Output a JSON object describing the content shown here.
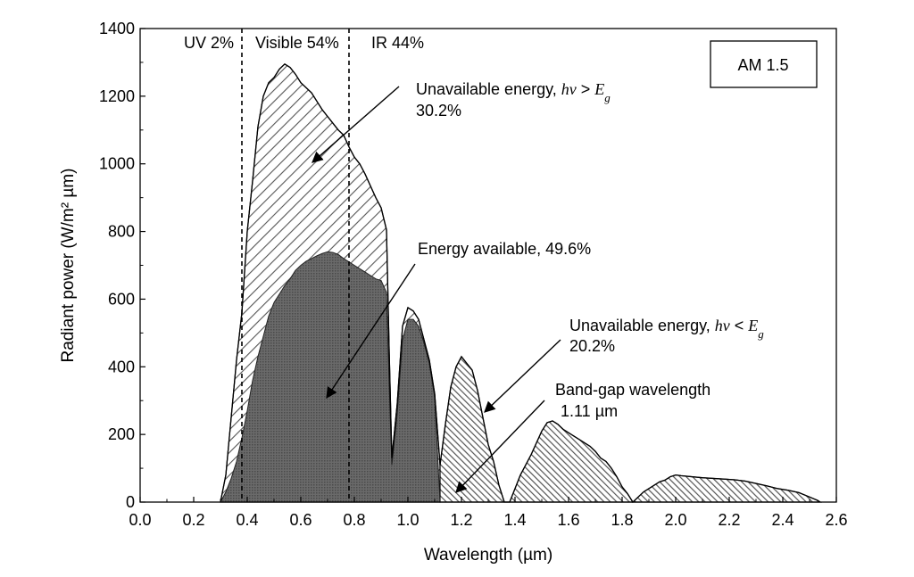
{
  "chart_data": {
    "type": "area",
    "title": "",
    "xlabel": "Wavelength (µm)",
    "ylabel": "Radiant power (W/m² µm)",
    "xlim": [
      0.0,
      2.6
    ],
    "ylim": [
      0,
      1400
    ],
    "xticks": [
      "0.0",
      "0.2",
      "0.4",
      "0.6",
      "0.8",
      "1.0",
      "1.2",
      "1.4",
      "1.6",
      "1.8",
      "2.0",
      "2.2",
      "2.4",
      "2.6"
    ],
    "yticks": [
      "0",
      "200",
      "400",
      "600",
      "800",
      "1000",
      "1200",
      "1400"
    ],
    "grid": false,
    "legend_box": "AM 1.5",
    "region_labels": {
      "uv": "UV 2%",
      "visible": "Visible 54%",
      "ir": "IR 44%"
    },
    "divider_lines_x": [
      0.38,
      0.78
    ],
    "annotations": {
      "unavailable_high": {
        "line1": "Unavailable energy, ",
        "hv": "hν",
        "op": " > ",
        "eg": "E",
        "sub": "g",
        "line2": "30.2%"
      },
      "available": {
        "line1": "Energy available, 49.6%"
      },
      "unavailable_low": {
        "line1": "Unavailable energy,  ",
        "hv": "hν",
        "op": " < ",
        "eg": "E",
        "sub": "g",
        "line2": "20.2%"
      },
      "bandgap": {
        "line1": "Band-gap wavelength",
        "line2": "1.11 µm"
      }
    },
    "series": [
      {
        "name": "AM 1.5 spectrum",
        "x": [
          0.3,
          0.32,
          0.34,
          0.36,
          0.38,
          0.4,
          0.42,
          0.44,
          0.46,
          0.48,
          0.5,
          0.52,
          0.54,
          0.56,
          0.58,
          0.6,
          0.62,
          0.64,
          0.66,
          0.68,
          0.7,
          0.72,
          0.74,
          0.76,
          0.78,
          0.8,
          0.82,
          0.84,
          0.86,
          0.88,
          0.9,
          0.92,
          0.93,
          0.94,
          0.96,
          0.98,
          1.0,
          1.02,
          1.04,
          1.06,
          1.08,
          1.1,
          1.12,
          1.14,
          1.16,
          1.18,
          1.2,
          1.22,
          1.24,
          1.26,
          1.28,
          1.3,
          1.32,
          1.34,
          1.36,
          1.38,
          1.4,
          1.42,
          1.44,
          1.46,
          1.48,
          1.5,
          1.52,
          1.54,
          1.56,
          1.58,
          1.6,
          1.62,
          1.64,
          1.66,
          1.68,
          1.7,
          1.72,
          1.74,
          1.76,
          1.78,
          1.8,
          1.82,
          1.84,
          1.86,
          1.88,
          1.9,
          1.92,
          1.94,
          1.96,
          1.98,
          2.0,
          2.02,
          2.06,
          2.1,
          2.14,
          2.18,
          2.22,
          2.26,
          2.3,
          2.34,
          2.38,
          2.42,
          2.46,
          2.5,
          2.53,
          2.54
        ],
        "y": [
          0,
          80,
          250,
          420,
          560,
          800,
          950,
          1110,
          1200,
          1240,
          1255,
          1280,
          1295,
          1285,
          1265,
          1240,
          1225,
          1210,
          1185,
          1160,
          1140,
          1120,
          1100,
          1085,
          1050,
          1020,
          1000,
          970,
          935,
          900,
          870,
          805,
          450,
          130,
          290,
          520,
          575,
          565,
          540,
          480,
          420,
          320,
          110,
          230,
          340,
          400,
          430,
          410,
          390,
          330,
          250,
          170,
          120,
          50,
          0,
          0,
          40,
          80,
          110,
          140,
          175,
          210,
          235,
          240,
          230,
          215,
          205,
          195,
          185,
          175,
          165,
          150,
          130,
          120,
          100,
          75,
          45,
          25,
          0,
          15,
          30,
          40,
          50,
          60,
          65,
          75,
          80,
          78,
          75,
          72,
          70,
          68,
          66,
          62,
          55,
          48,
          40,
          35,
          28,
          15,
          5,
          0
        ]
      },
      {
        "name": "Energy available",
        "x": [
          0.3,
          0.32,
          0.34,
          0.36,
          0.38,
          0.4,
          0.42,
          0.44,
          0.46,
          0.48,
          0.5,
          0.52,
          0.54,
          0.56,
          0.58,
          0.6,
          0.62,
          0.64,
          0.66,
          0.68,
          0.7,
          0.72,
          0.74,
          0.76,
          0.78,
          0.8,
          0.82,
          0.84,
          0.86,
          0.88,
          0.9,
          0.92,
          0.93,
          0.94,
          0.96,
          0.98,
          1.0,
          1.02,
          1.04,
          1.06,
          1.08,
          1.1,
          1.12
        ],
        "y": [
          0,
          30,
          70,
          120,
          190,
          270,
          360,
          430,
          490,
          550,
          590,
          615,
          640,
          660,
          685,
          700,
          712,
          720,
          728,
          735,
          740,
          738,
          732,
          720,
          710,
          700,
          690,
          680,
          670,
          660,
          655,
          620,
          350,
          110,
          260,
          480,
          540,
          540,
          520,
          470,
          410,
          310,
          0
        ]
      }
    ]
  }
}
